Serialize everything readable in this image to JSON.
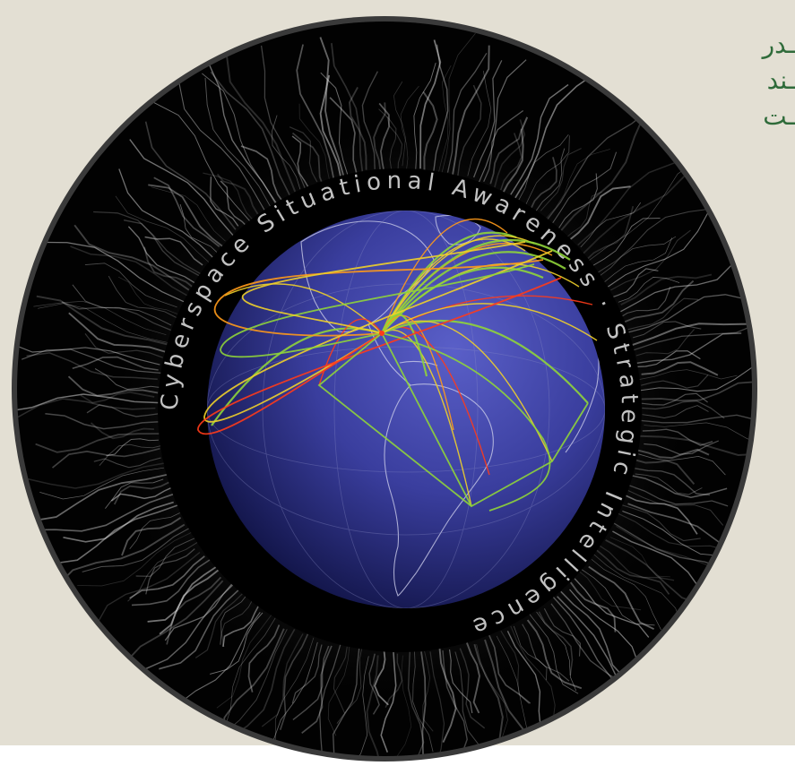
{
  "side_text": {
    "line1": "ـدر",
    "line2": "ـند",
    "line3": "ـت"
  },
  "emblem": {
    "ring_text": "Cyberspace Situational Awareness · Strategic Intelligence",
    "colors": {
      "background_panel": "#e3dfd3",
      "outer_ring": "#3a3a3a",
      "inner_black": "#050505",
      "globe_light": "#4b4fb6",
      "globe_dark": "#0d0f33",
      "arc_green": "#8fd43a",
      "arc_yellow": "#f0d02a",
      "arc_orange": "#ff9a1a",
      "arc_red": "#ff3b1a"
    },
    "icons": [
      "globe-icon",
      "network-arcs",
      "corona-rays"
    ]
  }
}
